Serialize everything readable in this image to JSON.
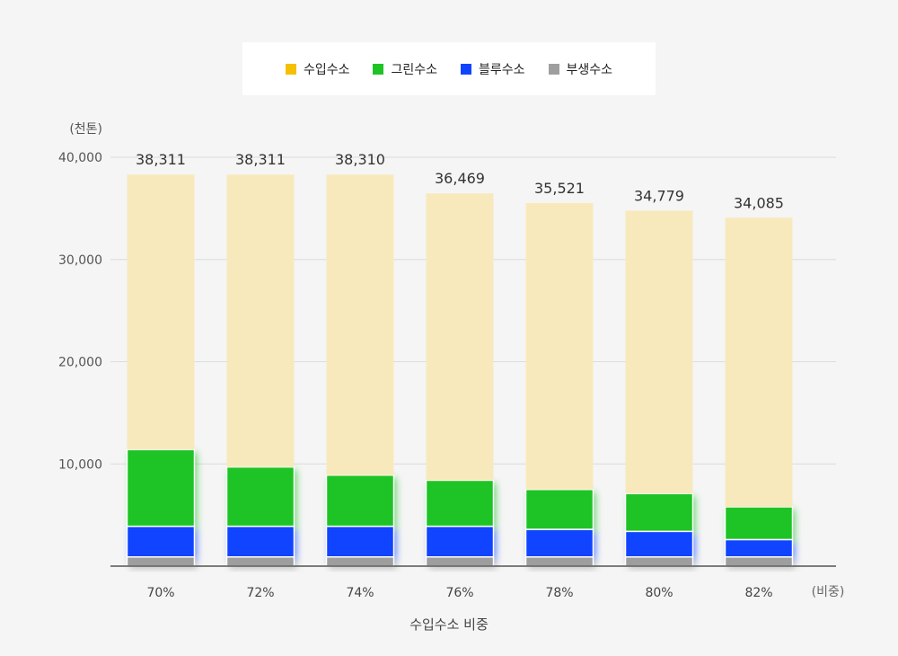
{
  "chart_data": {
    "type": "bar",
    "stacked": true,
    "categories": [
      "70%",
      "72%",
      "74%",
      "76%",
      "78%",
      "80%",
      "82%"
    ],
    "totals": [
      "38,311",
      "38,311",
      "38,310",
      "36,469",
      "35,521",
      "34,779",
      "34,085"
    ],
    "series": [
      {
        "name": "부생수소",
        "color": "#9e9e9e",
        "values": [
          900,
          900,
          900,
          900,
          900,
          900,
          900
        ]
      },
      {
        "name": "블루수소",
        "color": "#1144ff",
        "values": [
          3000,
          3000,
          3000,
          3000,
          2700,
          2500,
          1700
        ]
      },
      {
        "name": "그린수소",
        "color": "#1ec425",
        "values": [
          7500,
          5800,
          5000,
          4500,
          3900,
          3700,
          3200
        ]
      },
      {
        "name": "수입수소",
        "color": "#f8e9bd",
        "values": [
          26911,
          28611,
          29410,
          28069,
          28021,
          27679,
          28285
        ]
      }
    ],
    "legend_order": [
      3,
      2,
      1,
      0
    ],
    "legend_colors": [
      "#f5c000",
      "#1ec425",
      "#1144ff",
      "#9e9e9e"
    ],
    "ylim": [
      0,
      40000
    ],
    "yticks": [
      "10,000",
      "20,000",
      "30,000",
      "40,000"
    ],
    "ytick_values": [
      10000,
      20000,
      30000,
      40000
    ],
    "y_unit": "(천톤)",
    "x_unit": "(비중)",
    "xlabel": "수입수소 비중",
    "grid": true,
    "legend_position": "top-center"
  }
}
